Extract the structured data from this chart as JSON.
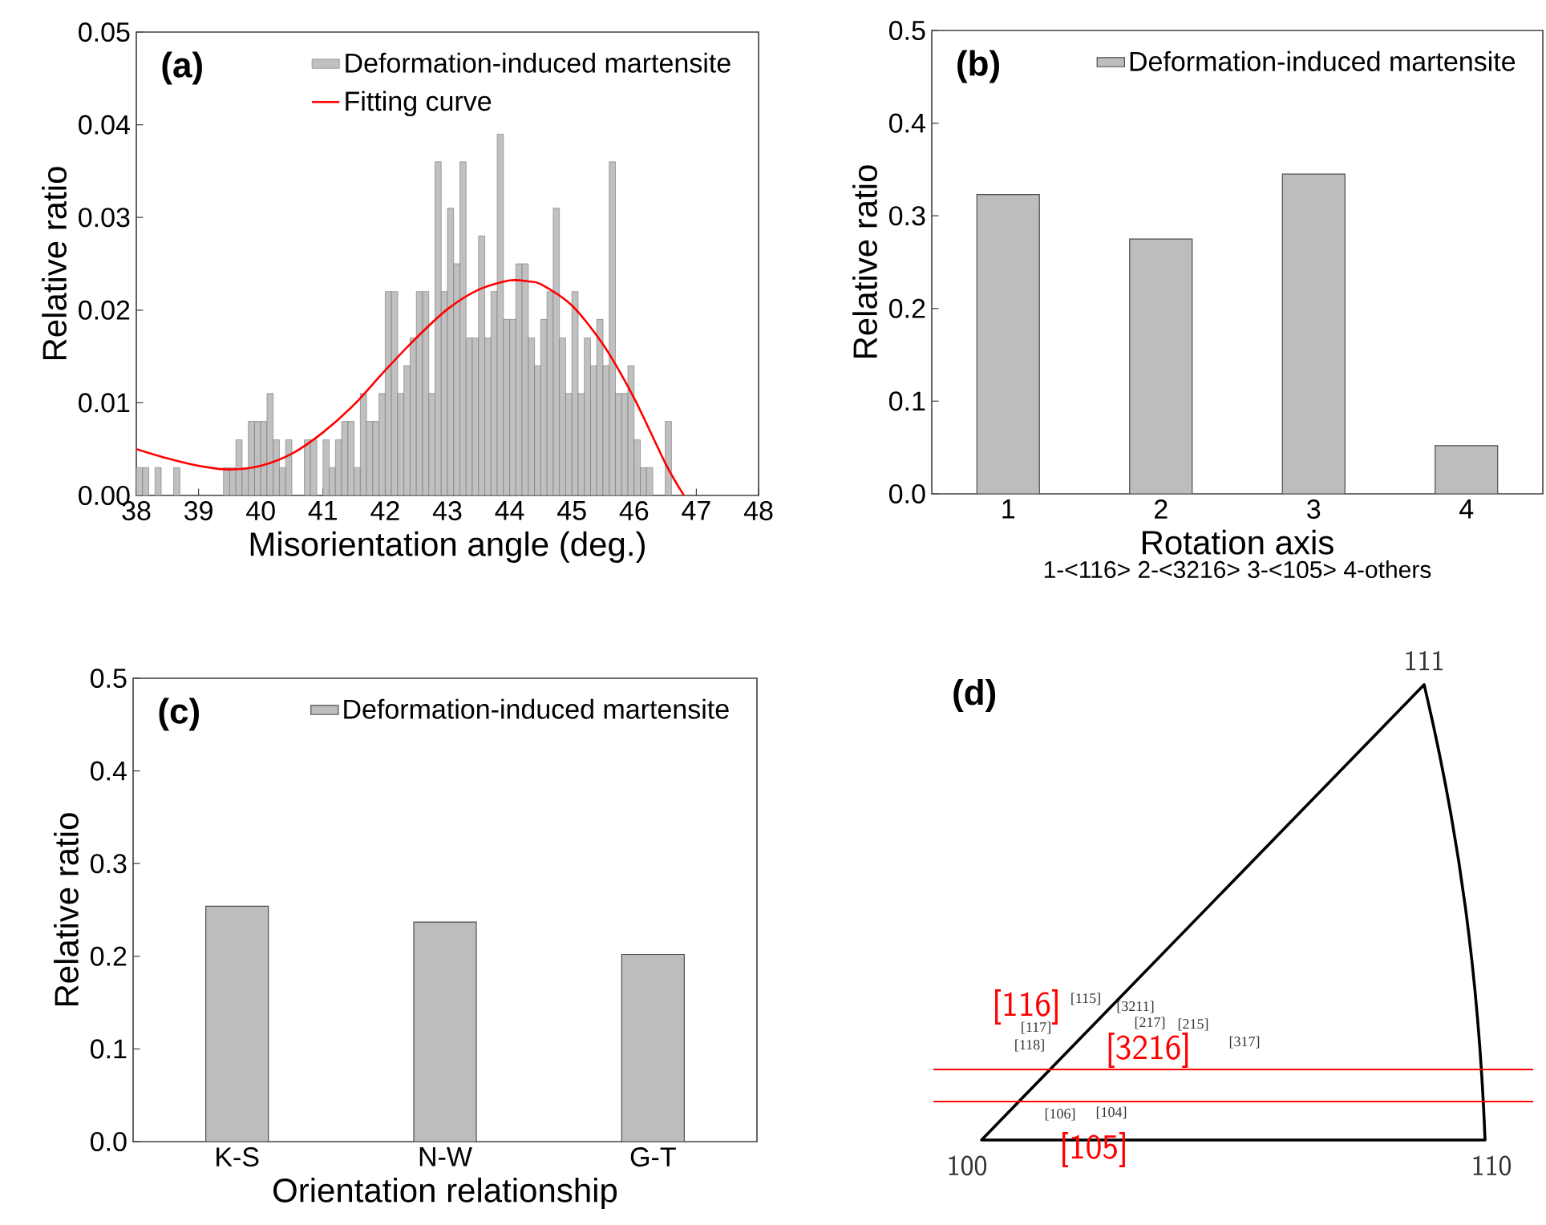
{
  "chart_data": [
    {
      "type": "histogram",
      "title": "(a)",
      "xlabel": "Misorientation angle (deg.)",
      "ylabel": "Relative ratio",
      "xlim": [
        38,
        48
      ],
      "ylim": [
        0,
        0.05
      ],
      "xticks": [
        38,
        39,
        40,
        41,
        42,
        43,
        44,
        45,
        46,
        47,
        48
      ],
      "yticks": [
        {
          "value": 0,
          "label": "0.00"
        },
        {
          "value": 0.01,
          "label": "0.01"
        },
        {
          "value": 0.02,
          "label": "0.02"
        },
        {
          "value": 0.03,
          "label": "0.03"
        },
        {
          "value": 0.04,
          "label": "0.04"
        },
        {
          "value": 0.05,
          "label": "0.05"
        }
      ],
      "legend": "top right",
      "series": [
        {
          "name": "Deformation-induced martensite",
          "type": "histogram",
          "color": "#c0c0c0",
          "bins": [
            38.0,
            38.1,
            38.2,
            38.3,
            38.4,
            38.5,
            38.6,
            38.7,
            38.8,
            38.9,
            39.0,
            39.1,
            39.2,
            39.3,
            39.4,
            39.5,
            39.6,
            39.7,
            39.8,
            39.9,
            40.0,
            40.1,
            40.2,
            40.3,
            40.4,
            40.5,
            40.6,
            40.7,
            40.8,
            40.9,
            41.0,
            41.1,
            41.2,
            41.3,
            41.4,
            41.5,
            41.6,
            41.7,
            41.8,
            41.9,
            42.0,
            42.1,
            42.2,
            42.3,
            42.4,
            42.5,
            42.6,
            42.7,
            42.8,
            42.9,
            43.0,
            43.1,
            43.2,
            43.3,
            43.4,
            43.5,
            43.6,
            43.7,
            43.8,
            43.9,
            44.0,
            44.1,
            44.2,
            44.3,
            44.4,
            44.5,
            44.6,
            44.7,
            44.8,
            44.9,
            45.0,
            45.1,
            45.2,
            45.3,
            45.4,
            45.5,
            45.6,
            45.7,
            45.8,
            45.9,
            46.0,
            46.1,
            46.2,
            46.3,
            46.4,
            46.5,
            46.6
          ],
          "values": [
            0.003,
            0.003,
            0,
            0.003,
            0,
            0,
            0.003,
            0,
            0,
            0,
            0,
            0,
            0,
            0,
            0.003,
            0.003,
            0.006,
            0.003,
            0.008,
            0.008,
            0.008,
            0.011,
            0.006,
            0.003,
            0.006,
            0,
            0,
            0.006,
            0.006,
            0,
            0.006,
            0.003,
            0.006,
            0.008,
            0.008,
            0.003,
            0.011,
            0.008,
            0.008,
            0.011,
            0.022,
            0.022,
            0.011,
            0.014,
            0.017,
            0.022,
            0.022,
            0.011,
            0.036,
            0.022,
            0.031,
            0.025,
            0.036,
            0.017,
            0.017,
            0.028,
            0.017,
            0.022,
            0.039,
            0.019,
            0.019,
            0.025,
            0.025,
            0.017,
            0.014,
            0.019,
            0.022,
            0.031,
            0.017,
            0.011,
            0.022,
            0.011,
            0.017,
            0.014,
            0.019,
            0.014,
            0.036,
            0.011,
            0.011,
            0.014,
            0.006,
            0.003,
            0.003,
            0,
            0,
            0.008
          ]
        },
        {
          "name": "Fitting curve",
          "type": "line",
          "color": "#ff0000",
          "x": [
            38,
            38.5,
            39,
            39.5,
            40,
            40.5,
            41,
            41.5,
            42,
            42.5,
            43,
            43.5,
            44,
            44.3,
            44.5,
            45,
            45.5,
            46,
            46.5,
            46.8
          ],
          "values": [
            0.005,
            0.004,
            0.0032,
            0.0028,
            0.0032,
            0.0045,
            0.0068,
            0.0098,
            0.0135,
            0.017,
            0.0201,
            0.0222,
            0.0232,
            0.0231,
            0.0228,
            0.0205,
            0.0163,
            0.0105,
            0.0035,
            0
          ]
        }
      ]
    },
    {
      "type": "bar",
      "title": "(b)",
      "xlabel": "Rotation axis",
      "ylabel": "Relative ratio",
      "annotations": [
        "1-<116> 2-<3216> 3-<105> 4-others"
      ],
      "categories": [
        "1",
        "2",
        "3",
        "4"
      ],
      "ylim": [
        0,
        0.5
      ],
      "yticks": [
        {
          "value": 0,
          "label": "0.0"
        },
        {
          "value": 0.1,
          "label": "0.1"
        },
        {
          "value": 0.2,
          "label": "0.2"
        },
        {
          "value": 0.3,
          "label": "0.3"
        },
        {
          "value": 0.4,
          "label": "0.4"
        },
        {
          "value": 0.5,
          "label": "0.5"
        }
      ],
      "legend": "top right",
      "series": [
        {
          "name": "Deformation-induced martensite",
          "color": "#bdbdbd",
          "values": [
            0.323,
            0.275,
            0.345,
            0.052
          ]
        }
      ]
    },
    {
      "type": "bar",
      "title": "(c)",
      "xlabel": "Orientation relationship",
      "ylabel": "Relative ratio",
      "categories": [
        "K-S",
        "N-W",
        "G-T"
      ],
      "ylim": [
        0,
        0.5
      ],
      "yticks": [
        {
          "value": 0,
          "label": "0.0"
        },
        {
          "value": 0.1,
          "label": "0.1"
        },
        {
          "value": 0.2,
          "label": "0.2"
        },
        {
          "value": 0.3,
          "label": "0.3"
        },
        {
          "value": 0.4,
          "label": "0.4"
        },
        {
          "value": 0.5,
          "label": "0.5"
        }
      ],
      "legend": "top right",
      "series": [
        {
          "name": "Deformation-induced martensite",
          "color": "#bdbdbd",
          "values": [
            0.254,
            0.237,
            0.202
          ]
        }
      ]
    },
    {
      "type": "other",
      "title": "(d)",
      "annotations": [
        "111",
        "100",
        "110",
        "[116]",
        "[3216]",
        "[105]",
        "[115]",
        "[3211]",
        "[117]",
        "[217]",
        "[215]",
        "[118]",
        "[317]",
        "[106]",
        "[104]"
      ]
    }
  ]
}
